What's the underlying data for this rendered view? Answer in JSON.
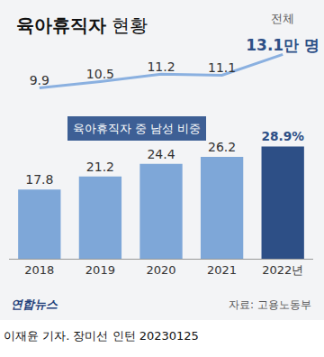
{
  "chart_data": {
    "type": "bar",
    "title": "육아휴직자 현황",
    "categories": [
      "2018",
      "2019",
      "2020",
      "2021",
      "2022년"
    ],
    "series": [
      {
        "name": "육아휴직자 중 남성 비중",
        "type": "bar",
        "colors": [
          "#7ea7d8",
          "#7ea7d8",
          "#7ea7d8",
          "#7ea7d8",
          "#2d4f86"
        ],
        "values": [
          17.8,
          21.2,
          24.4,
          26.2,
          28.9
        ],
        "value_labels": [
          "17.8",
          "21.2",
          "24.4",
          "26.2",
          "28.9%"
        ]
      },
      {
        "name": "전체",
        "type": "line",
        "axis": "y2",
        "color": "#8ab0e0",
        "marker": "none",
        "values": [
          9.9,
          10.5,
          11.2,
          11.1,
          13.1
        ],
        "value_labels": [
          "9.9",
          "10.5",
          "11.2",
          "11.1",
          "13.1만 명"
        ]
      }
    ],
    "ylim": [
      0,
      55
    ],
    "y2lim": [
      -6.5,
      14
    ],
    "data_labels": true,
    "tick_labels": "x",
    "source": "자료: 고용노동부",
    "logo": "연합뉴스",
    "byline": "이재윤 기자. 장미선 인턴  20230125"
  }
}
